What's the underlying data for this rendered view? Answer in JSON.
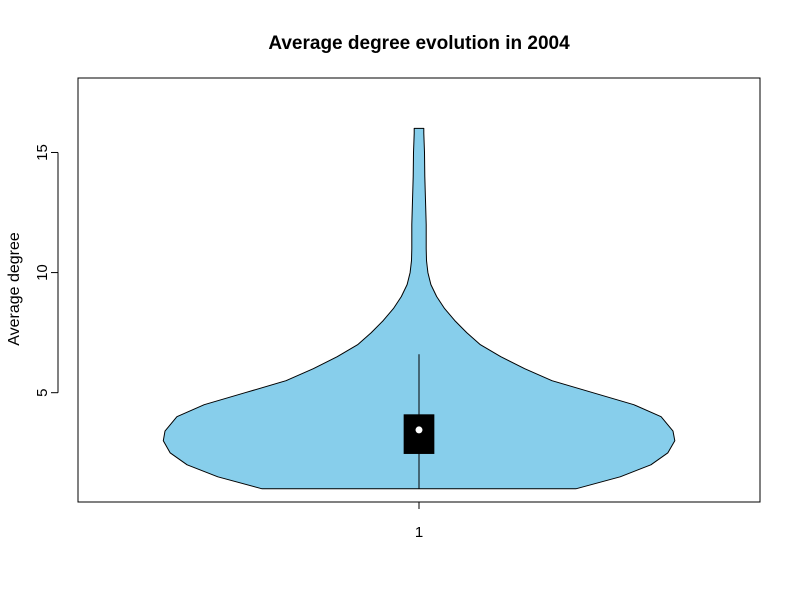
{
  "chart_data": {
    "type": "violin",
    "title": "Average degree evolution in 2004",
    "xlabel": "",
    "ylabel": "Average degree",
    "categories": [
      "1"
    ],
    "ylim": [
      0.45,
      18.1
    ],
    "y_ticks": [
      5,
      10,
      15
    ],
    "x_tick_labels": [
      "1"
    ],
    "grid": false,
    "legend": "none",
    "fill_color": "#87CEEB",
    "box_color": "#000000",
    "median_color": "#ffffff",
    "summary": {
      "min": 1.0,
      "q1": 2.45,
      "median": 3.45,
      "q3": 4.1,
      "whisker_high": 6.6,
      "max": 16.0
    },
    "density_profile": [
      {
        "y": 1.0,
        "width": 0.46
      },
      {
        "y": 1.5,
        "width": 0.59
      },
      {
        "y": 2.0,
        "width": 0.68
      },
      {
        "y": 2.5,
        "width": 0.73
      },
      {
        "y": 3.0,
        "width": 0.75
      },
      {
        "y": 3.4,
        "width": 0.745
      },
      {
        "y": 4.0,
        "width": 0.71
      },
      {
        "y": 4.5,
        "width": 0.63
      },
      {
        "y": 5.0,
        "width": 0.51
      },
      {
        "y": 5.5,
        "width": 0.39
      },
      {
        "y": 6.0,
        "width": 0.31
      },
      {
        "y": 6.5,
        "width": 0.24
      },
      {
        "y": 7.0,
        "width": 0.18
      },
      {
        "y": 7.5,
        "width": 0.14
      },
      {
        "y": 8.0,
        "width": 0.105
      },
      {
        "y": 8.5,
        "width": 0.075
      },
      {
        "y": 9.0,
        "width": 0.052
      },
      {
        "y": 9.5,
        "width": 0.035
      },
      {
        "y": 10.0,
        "width": 0.026
      },
      {
        "y": 10.5,
        "width": 0.022
      },
      {
        "y": 11.0,
        "width": 0.021
      },
      {
        "y": 12.0,
        "width": 0.021
      },
      {
        "y": 13.0,
        "width": 0.019
      },
      {
        "y": 14.0,
        "width": 0.017
      },
      {
        "y": 15.0,
        "width": 0.016
      },
      {
        "y": 15.8,
        "width": 0.014
      },
      {
        "y": 16.0,
        "width": 0.014
      }
    ]
  }
}
